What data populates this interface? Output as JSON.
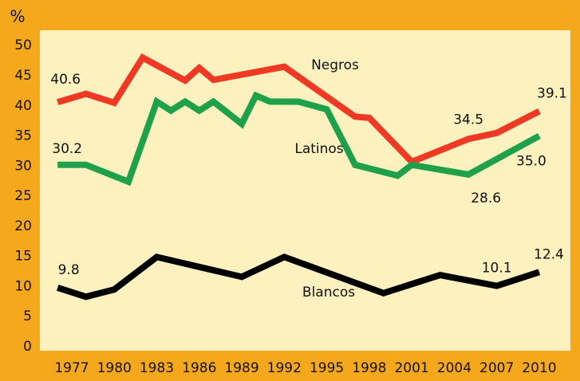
{
  "chart_data": {
    "type": "line",
    "y_unit_label": "%",
    "xlim": [
      1974.75,
      2012.2
    ],
    "xticks": [
      1977,
      1980,
      1983,
      1986,
      1989,
      1992,
      1995,
      1998,
      2001,
      2004,
      2007,
      2010
    ],
    "ylim": [
      0,
      50.5
    ],
    "yticks": [
      0,
      5,
      10,
      15,
      20,
      25,
      30,
      35,
      40,
      45,
      50
    ],
    "series": [
      {
        "name": "Negros",
        "color": "#ee3a24",
        "x": [
          1976,
          1978,
          1980,
          1982,
          1985,
          1986,
          1987,
          1992,
          1997,
          1998,
          2001,
          2005,
          2007,
          2010
        ],
        "values": [
          40.6,
          42.0,
          40.5,
          48.0,
          44.2,
          46.3,
          44.3,
          46.5,
          38.2,
          38.0,
          30.7,
          34.5,
          35.5,
          39.1
        ],
        "value_labels": [
          "40.6",
          null,
          null,
          null,
          null,
          null,
          null,
          null,
          null,
          null,
          null,
          "34.5",
          null,
          "39.1"
        ]
      },
      {
        "name": "Latinos",
        "color": "#1fa04a",
        "x": [
          1976,
          1978,
          1981,
          1983,
          1984,
          1985,
          1986,
          1987,
          1989,
          1990,
          1991,
          1993,
          1995,
          1997,
          2000,
          2001,
          2005,
          2010
        ],
        "values": [
          30.2,
          30.2,
          27.4,
          40.7,
          39.2,
          40.7,
          39.2,
          40.7,
          37.0,
          41.7,
          40.7,
          40.7,
          39.4,
          30.2,
          28.4,
          30.2,
          28.6,
          35.0
        ],
        "value_labels": [
          "30.2",
          null,
          null,
          null,
          null,
          null,
          null,
          null,
          null,
          null,
          null,
          null,
          null,
          null,
          null,
          null,
          "28.6",
          "35.0"
        ]
      },
      {
        "name": "Blancos",
        "color": "#000000",
        "x": [
          1976,
          1978,
          1980,
          1983,
          1989,
          1992,
          1999,
          2003,
          2007,
          2010
        ],
        "values": [
          9.8,
          8.3,
          9.5,
          14.9,
          11.6,
          14.9,
          8.9,
          11.9,
          10.1,
          12.4
        ],
        "value_labels": [
          "9.8",
          null,
          null,
          null,
          null,
          null,
          null,
          null,
          "10.1",
          "12.4"
        ]
      }
    ]
  }
}
